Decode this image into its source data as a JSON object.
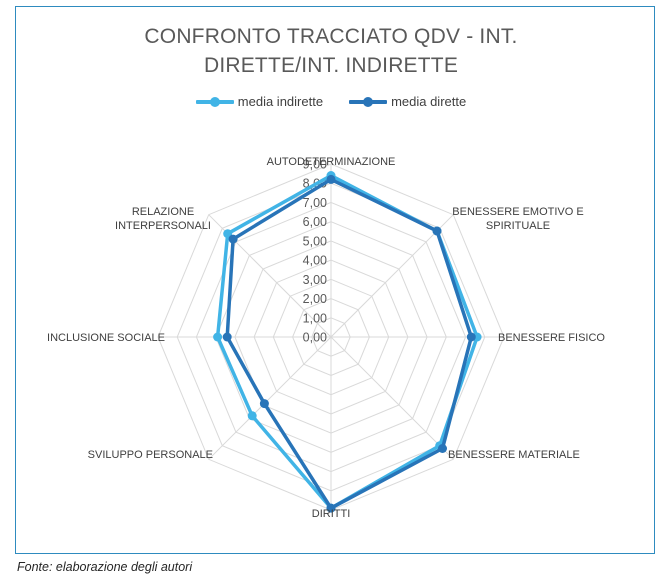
{
  "chart_data": {
    "type": "radar",
    "title_lines": [
      "CONFRONTO TRACCIATO QDV - INT.",
      "DIRETTE/INT. INDIRETTE"
    ],
    "axes": [
      [
        "AUTODETERMINAZIONE"
      ],
      [
        "BENESSERE EMOTIVO E",
        "SPIRITUALE"
      ],
      [
        "BENESSERE FISICO"
      ],
      [
        "BENESSERE MATERIALE"
      ],
      [
        "DIRITTI"
      ],
      [
        "SVILUPPO PERSONALE"
      ],
      [
        "INCLUSIONE SOCIALE"
      ],
      [
        "RELAZIONE",
        "INTERPERSONALI"
      ]
    ],
    "ticks": [
      "0,00",
      "1,00",
      "2,00",
      "3,00",
      "4,00",
      "5,00",
      "6,00",
      "7,00",
      "8,00",
      "9,00"
    ],
    "range": [
      0,
      9
    ],
    "series": [
      {
        "name": "media indirette",
        "color": "#41b4e6",
        "values": [
          8.4,
          7.8,
          7.6,
          8.0,
          8.9,
          5.8,
          5.9,
          7.6
        ]
      },
      {
        "name": "media dirette",
        "color": "#2874b8",
        "values": [
          8.2,
          7.8,
          7.3,
          8.2,
          8.9,
          4.9,
          5.4,
          7.2
        ]
      }
    ],
    "grid": true,
    "legend_position": "top"
  },
  "source_note": "Fonte: elaborazione degli autori"
}
